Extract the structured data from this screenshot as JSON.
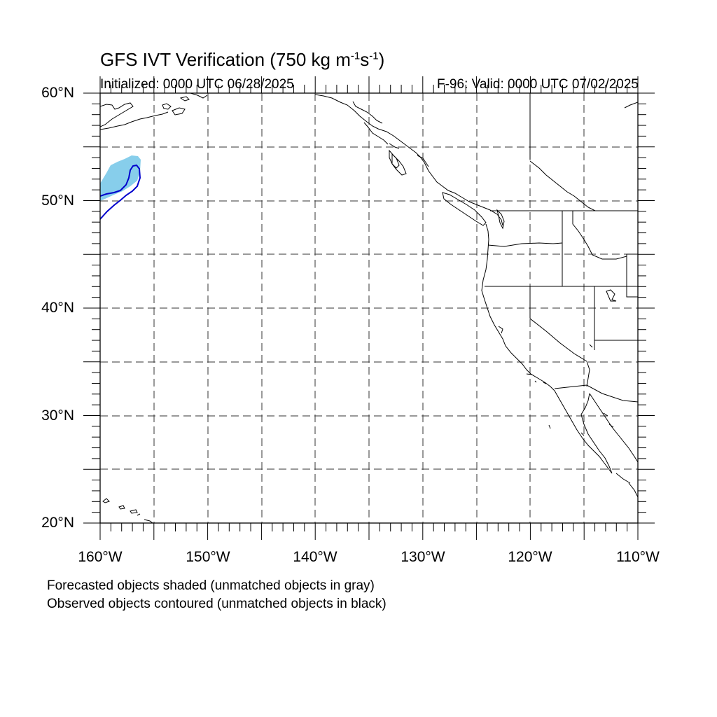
{
  "header": {
    "title_main": "GFS IVT Verification (750 kg m",
    "title_exp1": "-1",
    "title_mid": "s",
    "title_exp2": "-1",
    "title_end": ")",
    "initialized": "Initialized: 0000 UTC 06/28/2025",
    "valid": "F-96: Valid: 0000 UTC 07/02/2025"
  },
  "axes": {
    "lat_labels": [
      "60°N",
      "50°N",
      "40°N",
      "30°N",
      "20°N"
    ],
    "lon_labels": [
      "160°W",
      "150°W",
      "140°W",
      "130°W",
      "120°W",
      "110°W"
    ],
    "lat_range": [
      20,
      60
    ],
    "lon_range": [
      -160,
      -110
    ],
    "grid": "dashed every 5°"
  },
  "legend": {
    "line1": "Forecasted objects shaded (unmatched objects in gray)",
    "line2": "Observed objects contoured (unmatched objects in black)"
  },
  "colors": {
    "forecast_shade": "#87ceeb",
    "observed_contour": "#0000cd",
    "coastline": "#000000",
    "grid": "#333333"
  }
}
